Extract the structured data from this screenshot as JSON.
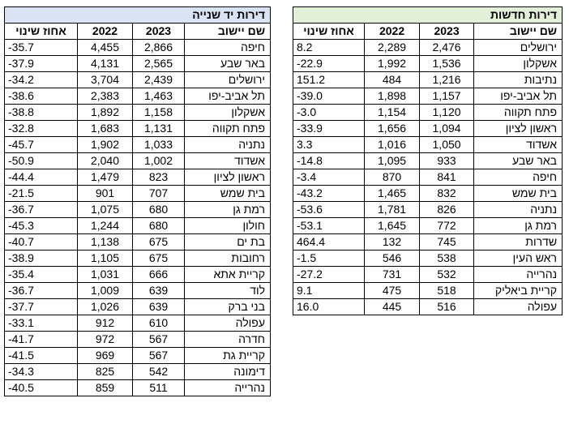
{
  "new_apartments": {
    "title": "דירות חדשות",
    "headers": {
      "name": "שם יישוב",
      "y2023": "2023",
      "y2022": "2022",
      "change": "אחוז שינוי"
    },
    "rows": [
      {
        "name": "ירושלים",
        "y2023": "2,476",
        "y2022": "2,289",
        "change": "8.2"
      },
      {
        "name": "אשקלון",
        "y2023": "1,536",
        "y2022": "1,992",
        "change": "-22.9"
      },
      {
        "name": "נתיבות",
        "y2023": "1,216",
        "y2022": "484",
        "change": "151.2"
      },
      {
        "name": "תל אביב-יפו",
        "y2023": "1,157",
        "y2022": "1,898",
        "change": "-39.0"
      },
      {
        "name": "פתח תקווה",
        "y2023": "1,120",
        "y2022": "1,154",
        "change": "-3.0"
      },
      {
        "name": "ראשון לציון",
        "y2023": "1,094",
        "y2022": "1,656",
        "change": "-33.9"
      },
      {
        "name": "אשדוד",
        "y2023": "1,050",
        "y2022": "1,016",
        "change": "3.3"
      },
      {
        "name": "באר שבע",
        "y2023": "933",
        "y2022": "1,095",
        "change": "-14.8"
      },
      {
        "name": "חיפה",
        "y2023": "841",
        "y2022": "870",
        "change": "-3.4"
      },
      {
        "name": "בית שמש",
        "y2023": "832",
        "y2022": "1,465",
        "change": "-43.2"
      },
      {
        "name": "נתניה",
        "y2023": "826",
        "y2022": "1,781",
        "change": "-53.6"
      },
      {
        "name": "רמת גן",
        "y2023": "772",
        "y2022": "1,645",
        "change": "-53.1"
      },
      {
        "name": "שדרות",
        "y2023": "745",
        "y2022": "132",
        "change": "464.4"
      },
      {
        "name": "ראש העין",
        "y2023": "538",
        "y2022": "546",
        "change": "-1.5"
      },
      {
        "name": "נהרייה",
        "y2023": "532",
        "y2022": "731",
        "change": "-27.2"
      },
      {
        "name": "קריית ביאליק",
        "y2023": "518",
        "y2022": "475",
        "change": "9.1"
      },
      {
        "name": "עפולה",
        "y2023": "516",
        "y2022": "445",
        "change": "16.0"
      }
    ]
  },
  "used_apartments": {
    "title": "דירות יד שנייה",
    "headers": {
      "name": "שם יישוב",
      "y2023": "2023",
      "y2022": "2022",
      "change": "אחוז שינוי"
    },
    "rows": [
      {
        "name": "חיפה",
        "y2023": "2,866",
        "y2022": "4,455",
        "change": "-35.7"
      },
      {
        "name": "באר שבע",
        "y2023": "2,565",
        "y2022": "4,131",
        "change": "-37.9"
      },
      {
        "name": "ירושלים",
        "y2023": "2,439",
        "y2022": "3,704",
        "change": "-34.2"
      },
      {
        "name": "תל אביב-יפו",
        "y2023": "1,463",
        "y2022": "2,383",
        "change": "-38.6"
      },
      {
        "name": "אשקלון",
        "y2023": "1,158",
        "y2022": "1,892",
        "change": "-38.8"
      },
      {
        "name": "פתח תקווה",
        "y2023": "1,131",
        "y2022": "1,683",
        "change": "-32.8"
      },
      {
        "name": "נתניה",
        "y2023": "1,033",
        "y2022": "1,902",
        "change": "-45.7"
      },
      {
        "name": "אשדוד",
        "y2023": "1,002",
        "y2022": "2,040",
        "change": "-50.9"
      },
      {
        "name": "ראשון לציון",
        "y2023": "823",
        "y2022": "1,479",
        "change": "-44.4"
      },
      {
        "name": "בית שמש",
        "y2023": "707",
        "y2022": "901",
        "change": "-21.5"
      },
      {
        "name": "רמת גן",
        "y2023": "680",
        "y2022": "1,075",
        "change": "-36.7"
      },
      {
        "name": "חולון",
        "y2023": "680",
        "y2022": "1,244",
        "change": "-45.3"
      },
      {
        "name": "בת ים",
        "y2023": "675",
        "y2022": "1,138",
        "change": "-40.7"
      },
      {
        "name": "רחובות",
        "y2023": "675",
        "y2022": "1,105",
        "change": "-38.9"
      },
      {
        "name": "קריית אתא",
        "y2023": "666",
        "y2022": "1,031",
        "change": "-35.4"
      },
      {
        "name": "לוד",
        "y2023": "639",
        "y2022": "1,009",
        "change": "-36.7"
      },
      {
        "name": "בני ברק",
        "y2023": "639",
        "y2022": "1,026",
        "change": "-37.7"
      },
      {
        "name": "עפולה",
        "y2023": "610",
        "y2022": "912",
        "change": "-33.1"
      },
      {
        "name": "חדרה",
        "y2023": "567",
        "y2022": "972",
        "change": "-41.7"
      },
      {
        "name": "קריית גת",
        "y2023": "567",
        "y2022": "969",
        "change": "-41.5"
      },
      {
        "name": "דימונה",
        "y2023": "542",
        "y2022": "825",
        "change": "-34.3"
      },
      {
        "name": "נהרייה",
        "y2023": "511",
        "y2022": "859",
        "change": "-40.5"
      }
    ]
  }
}
